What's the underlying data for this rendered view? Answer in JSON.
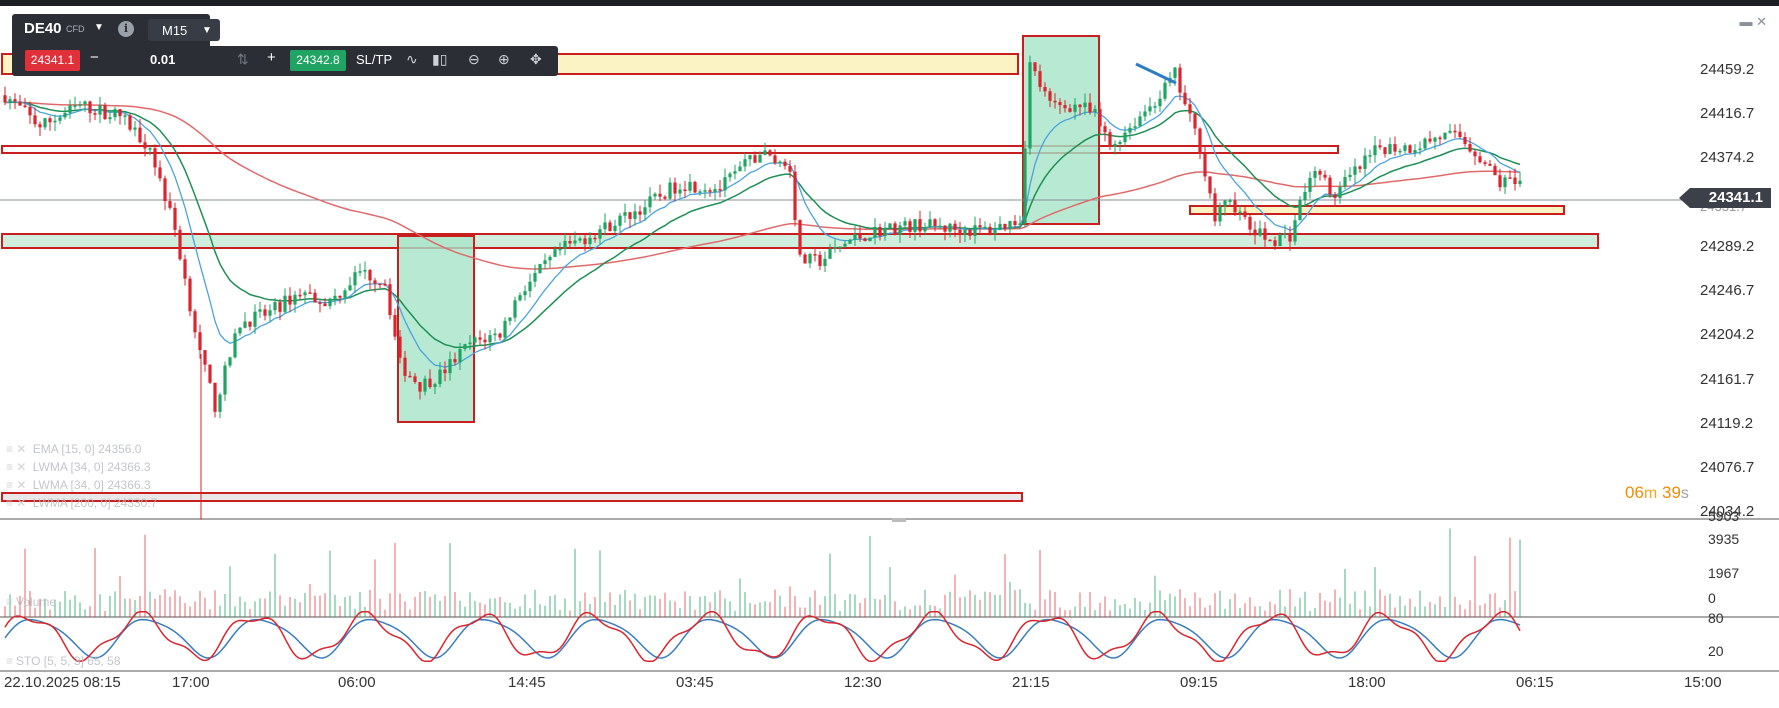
{
  "instrument": {
    "symbol": "DE40",
    "type": "CFD",
    "info_icon": "info-icon",
    "timeframe": "M15"
  },
  "trade_panel": {
    "sell_price": "24341.1",
    "buy_price": "24342.8",
    "quantity": "0.01",
    "minus_label": "−",
    "plus_label": "+",
    "sltp_label": "SL/TP",
    "icons": [
      "line-chart-icon",
      "candles-icon",
      "zoom-out-icon",
      "zoom-in-icon",
      "crosshair-icon"
    ]
  },
  "window_controls": [
    "minimize-icon",
    "close-icon"
  ],
  "price_axis": {
    "labels": [
      "24459.2",
      "24416.7",
      "24374.2",
      "24331.7",
      "24289.2",
      "24246.7",
      "24204.2",
      "24161.7",
      "24119.2",
      "24076.7",
      "24034.2"
    ],
    "current_price": "24341.1"
  },
  "countdown": {
    "minutes": "06",
    "seconds": "39",
    "min_unit": "m",
    "sec_unit": "s"
  },
  "indicators": [
    "EMA [15, 0] 24356.0",
    "LWMA [34, 0] 24366.3",
    "LWMA [34, 0] 24366.3",
    "LWMA [200, 0] 24330.7"
  ],
  "volume_axis": [
    "5903",
    "3935",
    "1967",
    "0"
  ],
  "volume_legend": "Volume",
  "stoch_axis": [
    "80",
    "20"
  ],
  "stoch_legend": "STO [5, 5, 3] 65, 58",
  "time_axis": [
    "22.10.2025 08:15",
    "17:00",
    "06:00",
    "14:45",
    "03:45",
    "12:30",
    "21:15",
    "09:15",
    "18:00",
    "06:15",
    "15:00"
  ],
  "colors": {
    "bull": "#1fa463",
    "bear": "#d9262e",
    "ema15": "#4aa3df",
    "lwma34": "#1e8f55",
    "lwma200": "#e06a6a",
    "zone_border": "#c81e1e",
    "zone_yellow": "#fbf3c4",
    "zone_green": "#cfeedd",
    "box_green": "#a6e3c8",
    "stoch_k": "#d9262e",
    "stoch_d": "#3a7dc0"
  }
}
